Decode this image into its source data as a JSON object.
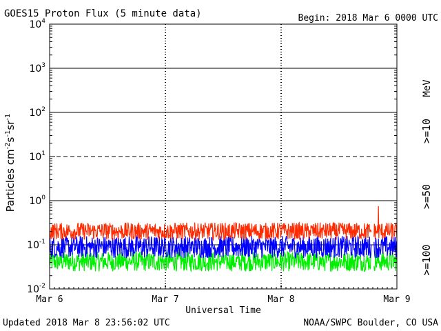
{
  "header": {
    "title": "GOES15 Proton Flux (5 minute data)",
    "begin": "Begin: 2018 Mar 6 0000 UTC"
  },
  "footer": {
    "updated": "Updated 2018 Mar  8 23:56:02 UTC",
    "credit": "NOAA/SWPC Boulder, CO USA"
  },
  "chart_data": {
    "type": "line",
    "title": "GOES15 Proton Flux (5 minute data)",
    "xlabel": "Universal Time",
    "ylabel": "Particles cm-2s-1sr-1",
    "ylabel_parts": {
      "main": "Particles cm",
      "sup1": "-2",
      "mid1": "s",
      "sup2": "-1",
      "mid2": "sr",
      "sup3": "-1"
    },
    "y_scale": "log",
    "ylim": [
      0.01,
      10000
    ],
    "y_ticks": [
      {
        "base": "10",
        "exp": "-2"
      },
      {
        "base": "10",
        "exp": "-1"
      },
      {
        "base": "10",
        "exp": "0"
      },
      {
        "base": "10",
        "exp": "1"
      },
      {
        "base": "10",
        "exp": "2"
      },
      {
        "base": "10",
        "exp": "3"
      },
      {
        "base": "10",
        "exp": "4"
      }
    ],
    "x_ticks": [
      "Mar 6",
      "Mar 7",
      "Mar 8",
      "Mar 9"
    ],
    "xlim_days": [
      0,
      3
    ],
    "grid": "vertical dashed at each day; horizontal solid at 10^3, 10^2, 10^0 and 10^-1, dashed at 10^1",
    "unit_label": "MeV",
    "legend_placement": "right side, vertical",
    "data_gap_days": [
      2.78,
      2.8
    ],
    "series": [
      {
        "name": ">=10",
        "color": "#ff2a00",
        "low": 0.13,
        "high": 0.32,
        "spike": {
          "day": 2.84,
          "value": 0.75
        }
      },
      {
        "name": ">=50",
        "color": "#0000ff",
        "low": 0.05,
        "high": 0.16
      },
      {
        "name": ">=100",
        "color": "#00ee00",
        "low": 0.025,
        "high": 0.07
      }
    ]
  }
}
